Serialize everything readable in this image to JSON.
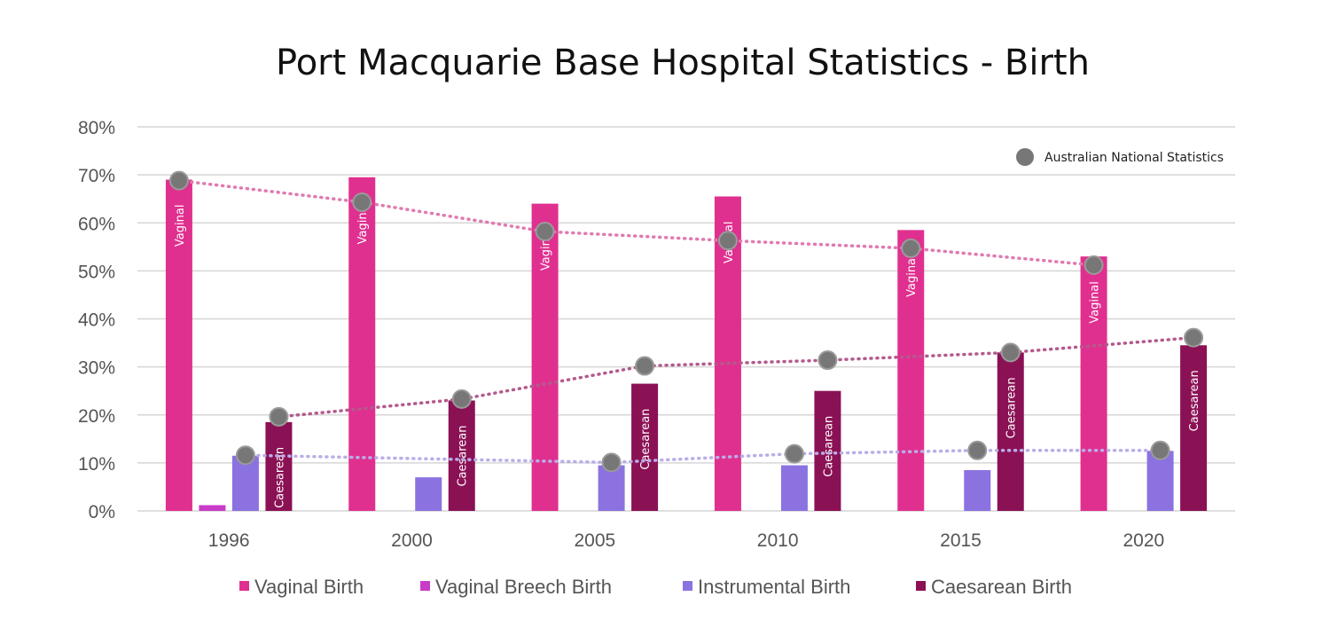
{
  "chart_data": {
    "type": "bar",
    "title": "Port Macquarie Base Hospital Statistics - Birth",
    "xlabel": "",
    "ylabel": "",
    "ylim": [
      0,
      80
    ],
    "yticks": [
      "0%",
      "10%",
      "20%",
      "30%",
      "40%",
      "50%",
      "60%",
      "70%",
      "80%"
    ],
    "categories": [
      "1996",
      "2000",
      "2005",
      "2010",
      "2015",
      "2020"
    ],
    "series": [
      {
        "name": "Vaginal Birth",
        "color": "#e0308f",
        "values": [
          69,
          69.5,
          64,
          65.5,
          58.5,
          53
        ],
        "bar_label": "Vaginal"
      },
      {
        "name": "Vaginal Breech Birth",
        "color": "#c83cc8",
        "values": [
          1.2,
          0,
          0,
          0,
          0,
          0
        ],
        "bar_label": ""
      },
      {
        "name": "Instrumental Birth",
        "color": "#8b72e0",
        "values": [
          11.5,
          7,
          9.5,
          9.5,
          8.5,
          12.5
        ],
        "bar_label": ""
      },
      {
        "name": "Caesarean Birth",
        "color": "#8b1155",
        "values": [
          18.5,
          23,
          26.5,
          25,
          33,
          34.5
        ],
        "bar_label": "Caesarean"
      }
    ],
    "national_statistics": {
      "name": "Australian National Statistics",
      "marker_color": "#777777",
      "series": [
        {
          "applies_to": "Vaginal Birth",
          "line_color": "#e07ab0",
          "values": [
            68.8,
            64.3,
            58.2,
            56.3,
            54.7,
            51.2
          ]
        },
        {
          "applies_to": "Instrumental Birth",
          "line_color": "#b9aee8",
          "values": [
            11.6,
            null,
            10.1,
            11.9,
            12.6,
            12.6
          ]
        },
        {
          "applies_to": "Caesarean Birth",
          "line_color": "#b35a8c",
          "values": [
            19.6,
            23.3,
            30.2,
            31.4,
            33.0,
            36.1
          ]
        }
      ]
    },
    "grid": true,
    "legend": "bottom"
  }
}
